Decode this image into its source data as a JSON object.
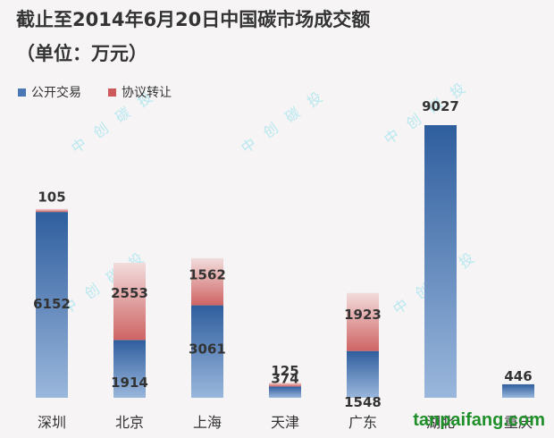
{
  "title_line1": "截止至2014年6月20日中国碳市场成交额",
  "title_line2": "（单位：万元）",
  "watermark_text": "中创碳投",
  "brand_text": "tanpaifang.com",
  "colors": {
    "public": "#4a78b4",
    "agreement": "#cc5a5a",
    "text": "#333333"
  },
  "chart_data": {
    "type": "bar",
    "stacked": true,
    "categories": [
      "深圳",
      "北京",
      "上海",
      "天津",
      "广东",
      "湖北",
      "重庆"
    ],
    "series": [
      {
        "name": "公开交易",
        "values": [
          6152,
          1914,
          3061,
          374,
          1548,
          9027,
          446
        ]
      },
      {
        "name": "协议转让",
        "values": [
          105,
          2553,
          1562,
          125,
          1923,
          0,
          0
        ]
      }
    ],
    "ylim": [
      0,
      9027
    ],
    "grid": false,
    "legend_position": "top-left"
  }
}
